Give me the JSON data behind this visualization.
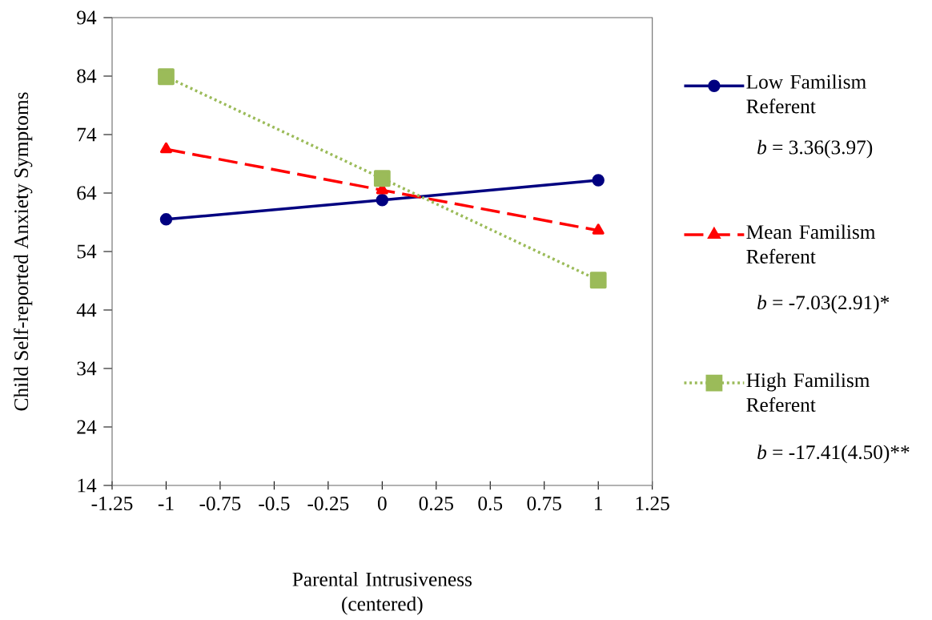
{
  "chart_data": {
    "type": "line",
    "xlabel": "Parental Intrusiveness (centered)",
    "ylabel": "Child Self-reported Anxiety Symptoms",
    "x": [
      -1,
      0,
      1
    ],
    "series": [
      {
        "name": "Low Familism Referent",
        "color": "#000080",
        "values": [
          59.5,
          62.8,
          66.2
        ],
        "marker": "circle",
        "line_style": "solid"
      },
      {
        "name": "Mean Familism Referent",
        "color": "#ff0000",
        "values": [
          71.5,
          64.5,
          57.6
        ],
        "marker": "triangle",
        "line_style": "dashed"
      },
      {
        "name": "High Familism Referent",
        "color": "#9bbb59",
        "values": [
          83.9,
          66.5,
          49.1
        ],
        "marker": "square",
        "line_style": "dotted"
      }
    ],
    "annotations": [
      "*b* = 3.36(3.97)",
      "*b* = -7.03(2.91)*",
      "*b* = -17.41(4.50)**"
    ],
    "xlim": [
      -1.25,
      1.25
    ],
    "ylim": [
      14,
      94
    ],
    "xticks": [
      -1.25,
      -1,
      -0.75,
      -0.5,
      -0.25,
      0,
      0.25,
      0.5,
      0.75,
      1,
      1.25
    ],
    "yticks": [
      14,
      24,
      34,
      44,
      54,
      64,
      74,
      84,
      94
    ],
    "legend": "right"
  }
}
